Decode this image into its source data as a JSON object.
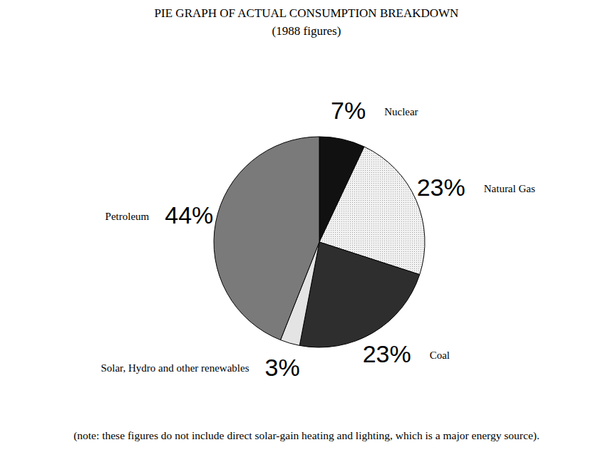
{
  "chart_data": {
    "type": "pie",
    "title": "PIE GRAPH OF ACTUAL CONSUMPTION BREAKDOWN",
    "subtitle": "(1988 figures)",
    "categories": [
      "Nuclear",
      "Natural Gas",
      "Coal",
      "Solar, Hydro and other renewables",
      "Petroleum"
    ],
    "values": [
      7,
      23,
      23,
      3,
      44
    ],
    "value_labels": [
      "7%",
      "23%",
      "23%",
      "3%",
      "44%"
    ],
    "colors": [
      "#111111",
      "#f2f2f2",
      "#2e2e2e",
      "#e4e4e4",
      "#7a7a7a"
    ],
    "data_labels": true,
    "annotations": [
      "(note:  these figures do not include direct solar-gain heating and lighting, which is a major energy source)."
    ]
  }
}
